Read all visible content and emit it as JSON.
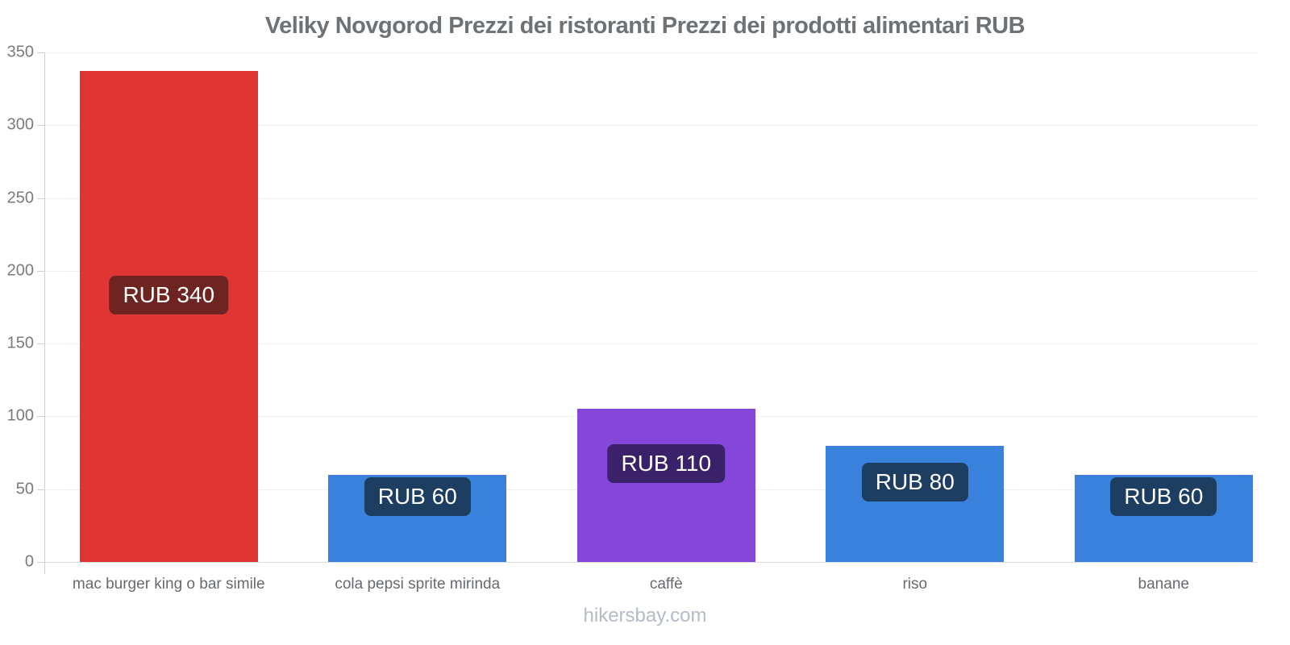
{
  "title": "Veliky Novgorod Prezzi dei ristoranti Prezzi dei prodotti alimentari RUB",
  "footer": "hikersbay.com",
  "chart_data": {
    "type": "bar",
    "title": "Veliky Novgorod Prezzi dei ristoranti Prezzi dei prodotti alimentari RUB",
    "xlabel": "",
    "ylabel": "",
    "currency": "RUB",
    "categories": [
      "mac burger king o bar simile",
      "cola pepsi sprite mirinda",
      "caffè",
      "riso",
      "banane"
    ],
    "values": [
      340,
      60,
      110,
      80,
      60
    ],
    "bar_render_values": [
      337,
      60,
      105,
      80,
      60
    ],
    "data_labels": [
      "RUB 340",
      "RUB 60",
      "RUB 110",
      "RUB 80",
      "RUB 60"
    ],
    "bar_colors": [
      "#df3533",
      "#3a81dc",
      "#8447d9",
      "#3a81dc",
      "#3a81dc"
    ],
    "label_bg_colors": [
      "#6e2420",
      "#1d3d61",
      "#3a2169",
      "#1d3d61",
      "#1d3d61"
    ],
    "ylim": [
      0,
      350
    ],
    "yticks": [
      0,
      50,
      100,
      150,
      200,
      250,
      300,
      350
    ],
    "grid": true,
    "legend_position": "none",
    "title_color": "#6d7276",
    "tick_label_color": "#7b7b7b",
    "category_label_color": "#666a6e",
    "footer_color": "#b4bcc6",
    "background_color": "#ffffff"
  }
}
